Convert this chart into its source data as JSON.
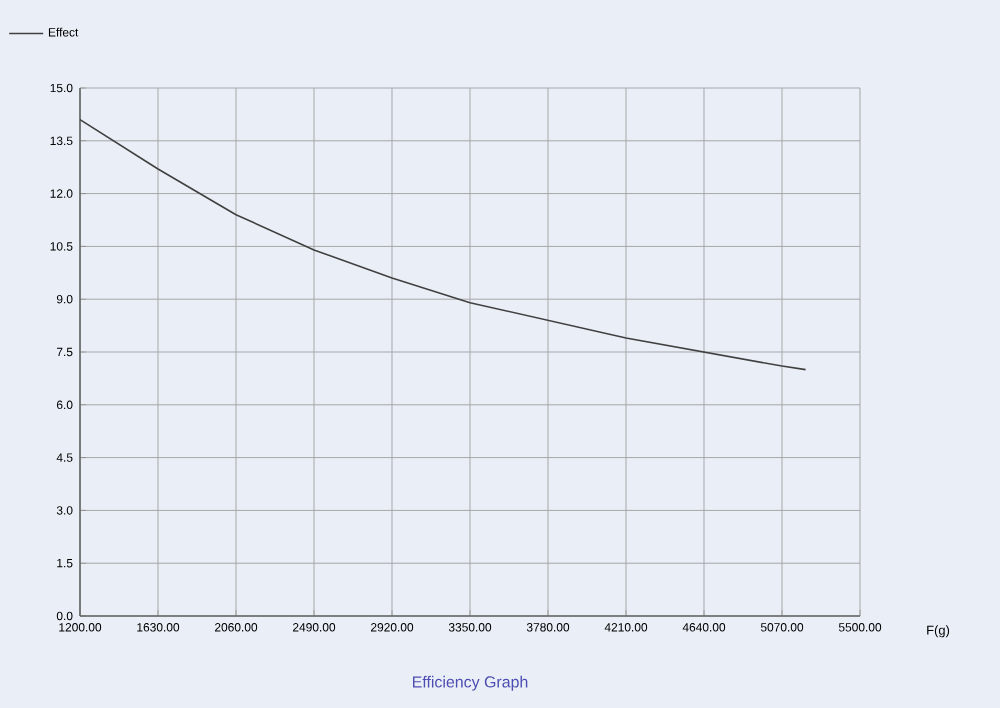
{
  "chart_data": {
    "type": "line",
    "xlabel": "F(g)",
    "annotations": [
      "Efficiency Graph"
    ],
    "x": [
      1200,
      1630,
      2060,
      2490,
      2920,
      3350,
      3780,
      4210,
      4640,
      5070,
      5200
    ],
    "series": [
      {
        "name": "Effect",
        "color": "#404040",
        "values": [
          14.1,
          12.7,
          11.4,
          10.4,
          9.6,
          8.9,
          8.4,
          7.9,
          7.5,
          7.1,
          7.0
        ]
      }
    ],
    "xlim": [
      1200,
      5500
    ],
    "ylim": [
      0,
      15
    ],
    "xticks": [
      {
        "value": 1200,
        "label": "1200.00"
      },
      {
        "value": 1630,
        "label": "1630.00"
      },
      {
        "value": 2060,
        "label": "2060.00"
      },
      {
        "value": 2490,
        "label": "2490.00"
      },
      {
        "value": 2920,
        "label": "2920.00"
      },
      {
        "value": 3350,
        "label": "3350.00"
      },
      {
        "value": 3780,
        "label": "3780.00"
      },
      {
        "value": 4210,
        "label": "4210.00"
      },
      {
        "value": 4640,
        "label": "4640.00"
      },
      {
        "value": 5070,
        "label": "5070.00"
      },
      {
        "value": 5500,
        "label": "5500.00"
      }
    ],
    "yticks": [
      {
        "value": 0,
        "label": "0.0"
      },
      {
        "value": 1.5,
        "label": "1.5"
      },
      {
        "value": 3,
        "label": "3.0"
      },
      {
        "value": 4.5,
        "label": "4.5"
      },
      {
        "value": 6,
        "label": "6.0"
      },
      {
        "value": 7.5,
        "label": "7.5"
      },
      {
        "value": 9,
        "label": "9.0"
      },
      {
        "value": 10.5,
        "label": "10.5"
      },
      {
        "value": 12,
        "label": "12.0"
      },
      {
        "value": 13.5,
        "label": "13.5"
      },
      {
        "value": 15,
        "label": "15.0"
      }
    ],
    "grid": true,
    "legend": "top left",
    "marker": "none",
    "line_style": "solid"
  }
}
